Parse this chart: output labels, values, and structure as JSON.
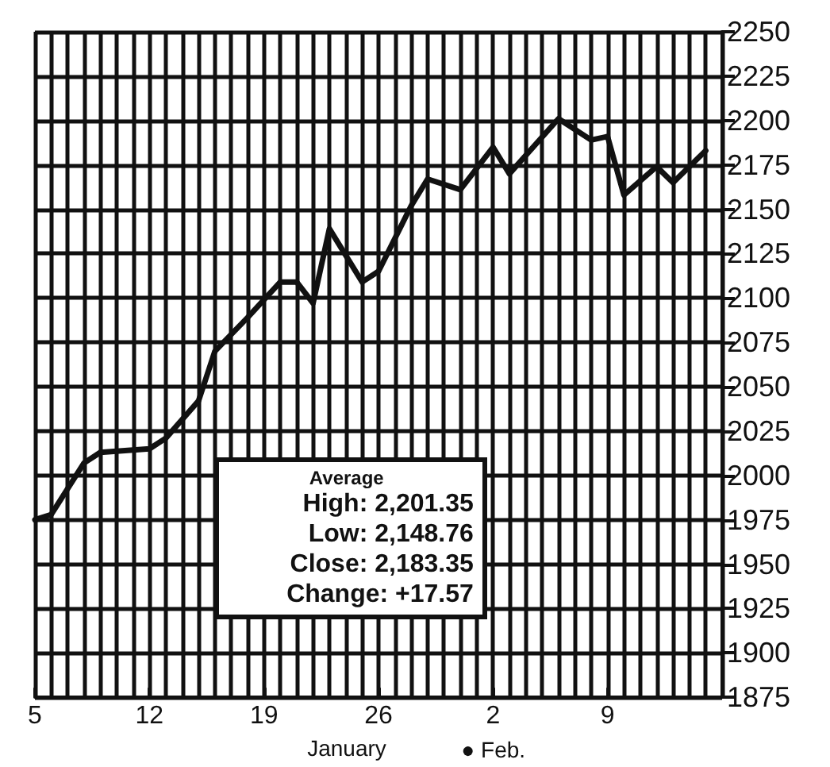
{
  "chart_data": {
    "type": "line",
    "xlabel": "January",
    "annotations": [
      "● Feb.",
      "Average",
      "High: 2,201.35",
      "Low: 2,148.76",
      "Close: 2,183.35",
      "Change: +17.57"
    ],
    "x": [
      "--01-05",
      "--01-06",
      "--01-08",
      "--01-09",
      "--01-12",
      "--01-13",
      "--01-15",
      "--01-16",
      "--01-18",
      "--01-20",
      "--01-21",
      "--01-22",
      "--01-23",
      "--01-25",
      "--01-26",
      "--01-28",
      "--01-29",
      "--01-31",
      "--02-02",
      "--02-03",
      "--02-06",
      "--02-08",
      "--02-09",
      "--02-10",
      "--02-12",
      "--02-13",
      "--02-15"
    ],
    "series": [
      {
        "color": "#111111",
        "values": [
          1975,
          1978,
          2007,
          2013,
          2015,
          2021,
          2042,
          2070,
          2089,
          2109,
          2109,
          2097,
          2139,
          2109,
          2115,
          2152,
          2167,
          2161,
          2185,
          2170,
          2201,
          2189,
          2191,
          2158,
          2174,
          2165,
          2183
        ]
      }
    ],
    "xlim": [
      "--01-05",
      "--02-16"
    ],
    "xticks": [
      {
        "value": "--01-05",
        "label": "5"
      },
      {
        "value": "--01-12",
        "label": "12"
      },
      {
        "value": "--01-19",
        "label": "19"
      },
      {
        "value": "--01-26",
        "label": "26"
      },
      {
        "value": "--02-02",
        "label": "2"
      },
      {
        "value": "--02-09",
        "label": "9"
      },
      {
        "value": "--02-16",
        "label": null
      }
    ],
    "ylim": [
      1875,
      2250
    ],
    "yticks": [
      1875,
      1900,
      1925,
      1950,
      1975,
      2000,
      2025,
      2050,
      2075,
      2100,
      2125,
      2150,
      2175,
      2200,
      2225,
      2250
    ],
    "grid": true,
    "marker": "none",
    "line_style": "solid"
  }
}
